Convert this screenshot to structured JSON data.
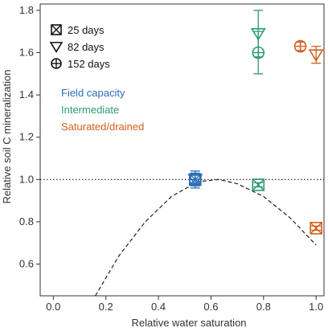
{
  "chart_data": {
    "type": "scatter",
    "xlabel": "Relative water saturation",
    "ylabel": "Relative soil C mineralization",
    "xlim": [
      -0.05,
      1.03
    ],
    "ylim": [
      0.45,
      1.83
    ],
    "xticks": [
      "0.0",
      "0.2",
      "0.4",
      "0.6",
      "0.8",
      "1.0"
    ],
    "yticks": [
      "0.6",
      "0.8",
      "1.0",
      "1.2",
      "1.4",
      "1.6",
      "1.8"
    ],
    "reference_line": {
      "y": 1.0,
      "style": "dotted"
    },
    "fit_curve": {
      "style": "dashed",
      "points": [
        [
          0.16,
          0.45
        ],
        [
          0.25,
          0.64
        ],
        [
          0.35,
          0.8
        ],
        [
          0.45,
          0.92
        ],
        [
          0.55,
          0.99
        ],
        [
          0.63,
          1.0
        ],
        [
          0.7,
          0.98
        ],
        [
          0.8,
          0.92
        ],
        [
          0.9,
          0.82
        ],
        [
          1.0,
          0.69
        ]
      ]
    },
    "markers_legend": [
      {
        "symbol": "square-x",
        "label": "25 days"
      },
      {
        "symbol": "triangle-down",
        "label": "82 days"
      },
      {
        "symbol": "circle-plus",
        "label": "152 days"
      }
    ],
    "treatments": [
      {
        "label": "Field capacity",
        "color": "#2c6db5"
      },
      {
        "label": "Intermediate",
        "color": "#2e9a75"
      },
      {
        "label": "Saturated/drained",
        "color": "#d35f1c"
      }
    ],
    "series": [
      {
        "name": "Field capacity",
        "color": "#2c6db5",
        "points": [
          {
            "x": 0.54,
            "y": 1.0,
            "symbol": "square-x",
            "err": 0.03
          },
          {
            "x": 0.54,
            "y": 1.0,
            "symbol": "triangle-down",
            "err": 0.04
          },
          {
            "x": 0.54,
            "y": 1.0,
            "symbol": "circle-plus",
            "err": 0.02
          }
        ]
      },
      {
        "name": "Intermediate",
        "color": "#2e9a75",
        "points": [
          {
            "x": 0.78,
            "y": 0.975,
            "symbol": "square-x",
            "err": 0.01
          },
          {
            "x": 0.78,
            "y": 1.69,
            "symbol": "triangle-down",
            "err": 0.11
          },
          {
            "x": 0.78,
            "y": 1.6,
            "symbol": "circle-plus",
            "err": 0.1
          }
        ]
      },
      {
        "name": "Saturated/drained",
        "color": "#d35f1c",
        "points": [
          {
            "x": 1.0,
            "y": 0.77,
            "symbol": "square-x",
            "err": 0.01
          },
          {
            "x": 1.0,
            "y": 1.59,
            "symbol": "triangle-down",
            "err": 0.04
          },
          {
            "x": 0.94,
            "y": 1.63,
            "symbol": "circle-plus",
            "err": 0.02
          }
        ]
      }
    ]
  }
}
